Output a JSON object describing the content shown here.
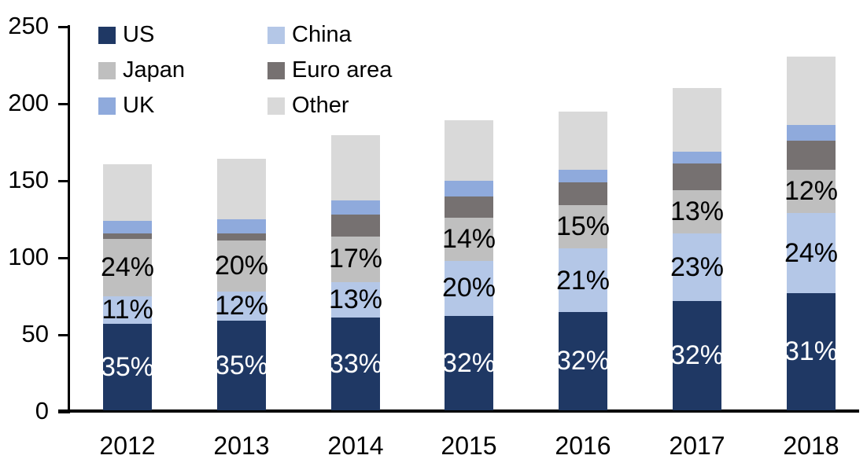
{
  "chart_data": {
    "type": "bar",
    "variant": "stacked-column",
    "title": "",
    "xlabel": "",
    "ylabel": "",
    "background_color": "#FFFFFF",
    "axis_color": "#000000",
    "text_color": "#000000",
    "grid": false,
    "categories": [
      "2012",
      "2013",
      "2014",
      "2015",
      "2016",
      "2017",
      "2018"
    ],
    "y_axis": {
      "min": 0,
      "max": 250,
      "step": 50,
      "tick_labels": [
        "0",
        "50",
        "100",
        "150",
        "200",
        "250"
      ]
    },
    "series": [
      {
        "name": "US",
        "color": "#1F3864",
        "values": [
          56,
          58,
          60,
          61,
          64,
          71,
          76
        ],
        "data_labels": [
          "35%",
          "35%",
          "33%",
          "32%",
          "32%",
          "32%",
          "31%"
        ],
        "label_color": "#FFFFFF"
      },
      {
        "name": "China",
        "color": "#B4C7E7",
        "values": [
          18,
          19,
          23,
          36,
          41,
          44,
          52
        ],
        "data_labels": [
          "11%",
          "12%",
          "13%",
          "20%",
          "21%",
          "23%",
          "24%"
        ],
        "label_color": "#000000"
      },
      {
        "name": "Japan",
        "color": "#BFBFBF",
        "values": [
          37,
          33,
          30,
          28,
          28,
          28,
          28
        ],
        "data_labels": [
          "24%",
          "20%",
          "17%",
          "14%",
          "15%",
          "13%",
          "12%"
        ],
        "label_color": "#000000"
      },
      {
        "name": "Euro area",
        "color": "#767171",
        "values": [
          4,
          5,
          14,
          14,
          15,
          17,
          19
        ],
        "data_labels": null,
        "label_color": null
      },
      {
        "name": "UK",
        "color": "#8FAADC",
        "values": [
          8,
          9,
          9,
          10,
          8,
          8,
          10
        ],
        "data_labels": null,
        "label_color": null
      },
      {
        "name": "Other",
        "color": "#D9D9D9",
        "values": [
          36,
          39,
          42,
          39,
          37,
          41,
          44
        ],
        "data_labels": null,
        "label_color": null
      }
    ],
    "totals": [
      159,
      163,
      178,
      188,
      193,
      209,
      229
    ],
    "legend": {
      "position": "top-left",
      "columns": 2,
      "items_row_major": [
        "US",
        "China",
        "Japan",
        "Euro area",
        "UK",
        "Other"
      ]
    }
  }
}
